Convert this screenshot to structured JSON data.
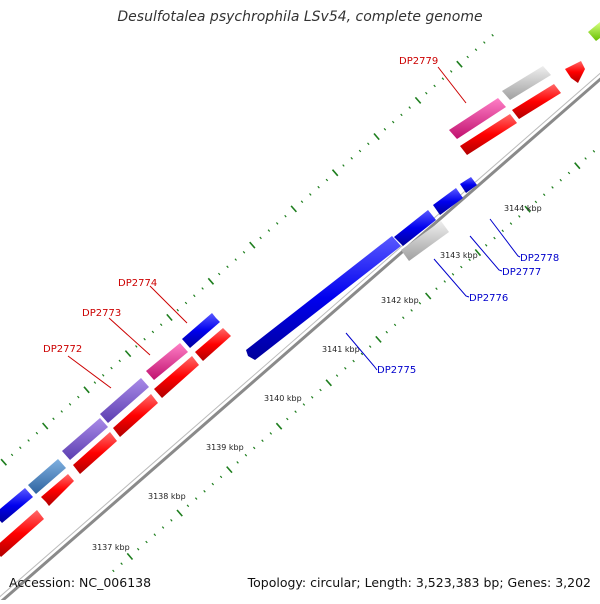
{
  "header": {
    "title": "Desulfotalea psychrophila LSv54, complete genome"
  },
  "footer": {
    "accession": "Accession: NC_006138",
    "summary": "Topology: circular; Length: 3,523,383 bp; Genes: 3,202"
  },
  "scale": {
    "ticks": [
      {
        "label": "3137 kbp"
      },
      {
        "label": "3138 kbp"
      },
      {
        "label": "3139 kbp"
      },
      {
        "label": "3140 kbp"
      },
      {
        "label": "3141 kbp"
      },
      {
        "label": "3142 kbp"
      },
      {
        "label": "3143 kbp"
      },
      {
        "label": "3144 kbp"
      }
    ]
  },
  "genes": {
    "forward": [
      {
        "name": "DP2772"
      },
      {
        "name": "DP2773"
      },
      {
        "name": "DP2774"
      },
      {
        "name": "DP2779"
      }
    ],
    "reverse": [
      {
        "name": "DP2775"
      },
      {
        "name": "DP2776"
      },
      {
        "name": "DP2777"
      },
      {
        "name": "DP2778"
      }
    ]
  },
  "colors": {
    "forward_label": "#cc0000",
    "reverse_label": "#0000cc",
    "cds_red": "#ff0000",
    "cds_blue": "#0000ee",
    "magenta": "#ee1c8e",
    "purple": "#7b55cf",
    "steel_blue": "#4a86c5",
    "grey_gene": "#c8c8c8",
    "green_tick": "#1e7e1e"
  }
}
